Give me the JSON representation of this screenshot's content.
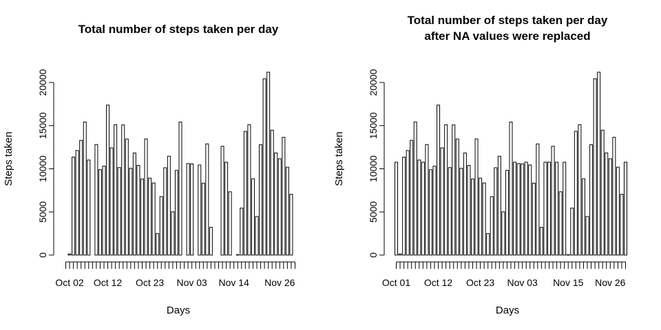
{
  "chart_data": [
    {
      "type": "bar",
      "title": "Total number of steps taken per day",
      "subtitle": "",
      "xlabel": "Days",
      "ylabel": "Steps taken",
      "ylim": [
        0,
        21194
      ],
      "y_ticks": [
        0,
        5000,
        10000,
        15000,
        20000
      ],
      "x_tick_labels": [
        "Oct 02",
        "Oct 12",
        "Oct 23",
        "Nov 03",
        "Nov 14",
        "Nov 26"
      ],
      "x_tick_indices": [
        1,
        11,
        22,
        33,
        44,
        56
      ],
      "grid": false,
      "legend": "none",
      "categories": [
        "Oct 01",
        "Oct 02",
        "Oct 03",
        "Oct 04",
        "Oct 05",
        "Oct 06",
        "Oct 07",
        "Oct 08",
        "Oct 09",
        "Oct 10",
        "Oct 11",
        "Oct 12",
        "Oct 13",
        "Oct 14",
        "Oct 15",
        "Oct 16",
        "Oct 17",
        "Oct 18",
        "Oct 19",
        "Oct 20",
        "Oct 21",
        "Oct 22",
        "Oct 23",
        "Oct 24",
        "Oct 25",
        "Oct 26",
        "Oct 27",
        "Oct 28",
        "Oct 29",
        "Oct 30",
        "Oct 31",
        "Nov 01",
        "Nov 02",
        "Nov 03",
        "Nov 04",
        "Nov 05",
        "Nov 06",
        "Nov 07",
        "Nov 08",
        "Nov 09",
        "Nov 10",
        "Nov 11",
        "Nov 12",
        "Nov 13",
        "Nov 14",
        "Nov 15",
        "Nov 16",
        "Nov 17",
        "Nov 18",
        "Nov 19",
        "Nov 20",
        "Nov 21",
        "Nov 22",
        "Nov 23",
        "Nov 24",
        "Nov 25",
        "Nov 26",
        "Nov 27",
        "Nov 28",
        "Nov 29",
        "Nov 30"
      ],
      "values": [
        0,
        126,
        11352,
        12116,
        13294,
        15420,
        11015,
        0,
        12811,
        9900,
        10304,
        17382,
        12426,
        15098,
        10139,
        15084,
        13452,
        10056,
        11829,
        10395,
        8821,
        13460,
        8918,
        8355,
        2492,
        6778,
        10119,
        11458,
        5018,
        9819,
        15414,
        0,
        10600,
        10571,
        0,
        10439,
        8334,
        12883,
        3219,
        0,
        0,
        12608,
        10765,
        7336,
        0,
        41,
        5441,
        14339,
        15110,
        8841,
        4472,
        12787,
        20427,
        21194,
        14478,
        11834,
        11162,
        13646,
        10183,
        7047,
        0
      ]
    },
    {
      "type": "bar",
      "title": "Total number of steps taken per day",
      "subtitle": "after NA values were replaced",
      "xlabel": "Days",
      "ylabel": "Steps taken",
      "ylim": [
        0,
        21194
      ],
      "y_ticks": [
        0,
        5000,
        10000,
        15000,
        20000
      ],
      "x_tick_labels": [
        "Oct 01",
        "Oct 12",
        "Oct 23",
        "Nov 03",
        "Nov 15",
        "Nov 26"
      ],
      "x_tick_indices": [
        0,
        11,
        22,
        33,
        45,
        56
      ],
      "grid": false,
      "legend": "none",
      "categories": [
        "Oct 01",
        "Oct 02",
        "Oct 03",
        "Oct 04",
        "Oct 05",
        "Oct 06",
        "Oct 07",
        "Oct 08",
        "Oct 09",
        "Oct 10",
        "Oct 11",
        "Oct 12",
        "Oct 13",
        "Oct 14",
        "Oct 15",
        "Oct 16",
        "Oct 17",
        "Oct 18",
        "Oct 19",
        "Oct 20",
        "Oct 21",
        "Oct 22",
        "Oct 23",
        "Oct 24",
        "Oct 25",
        "Oct 26",
        "Oct 27",
        "Oct 28",
        "Oct 29",
        "Oct 30",
        "Oct 31",
        "Nov 01",
        "Nov 02",
        "Nov 03",
        "Nov 04",
        "Nov 05",
        "Nov 06",
        "Nov 07",
        "Nov 08",
        "Nov 09",
        "Nov 10",
        "Nov 11",
        "Nov 12",
        "Nov 13",
        "Nov 14",
        "Nov 15",
        "Nov 16",
        "Nov 17",
        "Nov 18",
        "Nov 19",
        "Nov 20",
        "Nov 21",
        "Nov 22",
        "Nov 23",
        "Nov 24",
        "Nov 25",
        "Nov 26",
        "Nov 27",
        "Nov 28",
        "Nov 29",
        "Nov 30"
      ],
      "values": [
        10766,
        126,
        11352,
        12116,
        13294,
        15420,
        11015,
        10766,
        12811,
        9900,
        10304,
        17382,
        12426,
        15098,
        10139,
        15084,
        13452,
        10056,
        11829,
        10395,
        8821,
        13460,
        8918,
        8355,
        2492,
        6778,
        10119,
        11458,
        5018,
        9819,
        15414,
        10766,
        10600,
        10571,
        10766,
        10439,
        8334,
        12883,
        3219,
        10766,
        10766,
        12608,
        10765,
        7336,
        10766,
        41,
        5441,
        14339,
        15110,
        8841,
        4472,
        12787,
        20427,
        21194,
        14478,
        11834,
        11162,
        13646,
        10183,
        7047,
        10766
      ]
    }
  ]
}
